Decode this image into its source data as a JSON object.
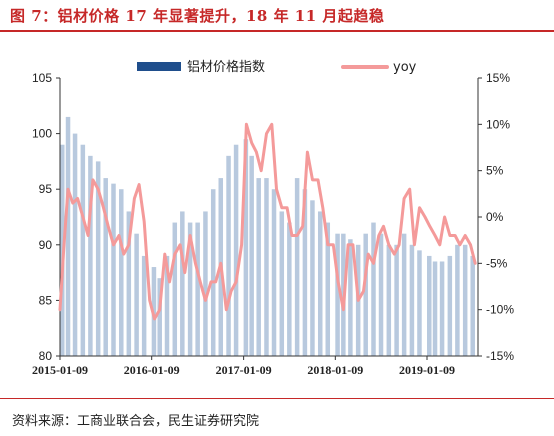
{
  "header": {
    "title": "图 7：铝材价格 17 年显著提升，18 年 11 月起趋稳"
  },
  "footer": {
    "source": "资料来源：工商业联合会，民生证券研究院"
  },
  "colors": {
    "bars": "#b8c9de",
    "legend_bar": "#1f4e8c",
    "line": "#f49a9a",
    "title": "#c62828"
  },
  "chart_data": {
    "type": "bar",
    "legend": [
      "铝材价格指数",
      "yoy"
    ],
    "legend_position": "top",
    "grid": false,
    "x_start": "2015-01-09",
    "x_end": "2019-07-31",
    "x_ticks": [
      "2015-01-09",
      "2016-01-09",
      "2017-01-09",
      "2018-01-09",
      "2019-01-09"
    ],
    "y_left": {
      "min": 80,
      "max": 105,
      "ticks": [
        "80",
        "85",
        "90",
        "95",
        "100",
        "105"
      ]
    },
    "y_right": {
      "min": -15,
      "max": 15,
      "ticks": [
        "-15%",
        "-10%",
        "-5%",
        "0%",
        "5%",
        "10%",
        "15%"
      ]
    },
    "series": [
      {
        "name": "铝材价格指数",
        "type": "bar",
        "axis": "left",
        "x": [
          "2015-01-09",
          "2015-02-01",
          "2015-03-01",
          "2015-04-01",
          "2015-05-01",
          "2015-06-01",
          "2015-07-01",
          "2015-08-01",
          "2015-09-01",
          "2015-10-01",
          "2015-11-01",
          "2015-12-01",
          "2016-01-09",
          "2016-02-01",
          "2016-03-01",
          "2016-04-01",
          "2016-05-01",
          "2016-06-01",
          "2016-07-01",
          "2016-08-01",
          "2016-09-01",
          "2016-10-01",
          "2016-11-01",
          "2016-12-01",
          "2017-01-09",
          "2017-02-01",
          "2017-03-01",
          "2017-04-01",
          "2017-05-01",
          "2017-06-01",
          "2017-07-01",
          "2017-08-01",
          "2017-09-01",
          "2017-10-01",
          "2017-11-01",
          "2017-12-01",
          "2018-01-09",
          "2018-02-01",
          "2018-03-01",
          "2018-04-01",
          "2018-05-01",
          "2018-06-01",
          "2018-07-01",
          "2018-08-01",
          "2018-09-01",
          "2018-10-01",
          "2018-11-01",
          "2018-12-01",
          "2019-01-09",
          "2019-02-01",
          "2019-03-01",
          "2019-04-01",
          "2019-05-01",
          "2019-06-01",
          "2019-07-01"
        ],
        "values": [
          99,
          101.5,
          100,
          99,
          98,
          97.5,
          96,
          95.5,
          95,
          93,
          91,
          89,
          88,
          87,
          89,
          92,
          93,
          92,
          92,
          93,
          95,
          96,
          98,
          99,
          99.5,
          98,
          96,
          96,
          95,
          93,
          92,
          96,
          95,
          94,
          93,
          92,
          91,
          91,
          90.5,
          90,
          91,
          92,
          91,
          90,
          90,
          91,
          90,
          89.5,
          89,
          88.5,
          88.5,
          89,
          90,
          90,
          89
        ]
      },
      {
        "name": "yoy",
        "type": "line",
        "axis": "right",
        "x": [
          "2015-01-09",
          "2015-01-25",
          "2015-02-10",
          "2015-03-01",
          "2015-03-20",
          "2015-04-10",
          "2015-05-01",
          "2015-05-20",
          "2015-06-10",
          "2015-07-01",
          "2015-07-20",
          "2015-08-10",
          "2015-09-01",
          "2015-09-20",
          "2015-10-10",
          "2015-11-01",
          "2015-11-20",
          "2015-12-10",
          "2016-01-01",
          "2016-01-20",
          "2016-02-10",
          "2016-03-01",
          "2016-03-20",
          "2016-04-10",
          "2016-05-01",
          "2016-05-20",
          "2016-06-10",
          "2016-07-01",
          "2016-07-20",
          "2016-08-10",
          "2016-09-01",
          "2016-09-20",
          "2016-10-10",
          "2016-11-01",
          "2016-11-20",
          "2016-12-10",
          "2017-01-01",
          "2017-01-20",
          "2017-02-10",
          "2017-03-01",
          "2017-03-20",
          "2017-04-10",
          "2017-05-01",
          "2017-05-20",
          "2017-06-10",
          "2017-07-01",
          "2017-07-20",
          "2017-08-10",
          "2017-09-01",
          "2017-09-20",
          "2017-10-10",
          "2017-11-01",
          "2017-11-20",
          "2017-12-10",
          "2018-01-01",
          "2018-01-20",
          "2018-02-10",
          "2018-03-01",
          "2018-03-20",
          "2018-04-10",
          "2018-05-01",
          "2018-05-20",
          "2018-06-10",
          "2018-07-01",
          "2018-07-20",
          "2018-08-10",
          "2018-09-01",
          "2018-09-20",
          "2018-10-10",
          "2018-11-01",
          "2018-11-20",
          "2018-12-10",
          "2019-01-01",
          "2019-01-20",
          "2019-02-10",
          "2019-03-01",
          "2019-03-20",
          "2019-04-10",
          "2019-05-01",
          "2019-05-20",
          "2019-06-10",
          "2019-07-01",
          "2019-07-20"
        ],
        "values": [
          -10,
          -3,
          3,
          1.5,
          2,
          0,
          -2,
          4,
          3,
          1,
          -1,
          -3,
          -2,
          -4,
          -3,
          2,
          3.5,
          -0.5,
          -9,
          -11,
          -10,
          -4,
          -7,
          -4,
          -3,
          -6,
          -2,
          -5,
          -7,
          -9,
          -7,
          -7,
          -5,
          -10,
          -8,
          -7,
          -3,
          10,
          8,
          7,
          5,
          9,
          10,
          3,
          1,
          1,
          -2,
          -2,
          -1,
          7,
          4,
          4,
          1,
          -3,
          -3,
          -7,
          -10,
          -3,
          -3,
          -9,
          -8,
          -4,
          -5,
          -2,
          -1,
          -3,
          -4,
          -3,
          2,
          3,
          -3,
          1,
          0,
          -1,
          -2,
          -3,
          0,
          -2,
          -2,
          -3,
          -2,
          -3,
          -5
        ]
      }
    ]
  }
}
